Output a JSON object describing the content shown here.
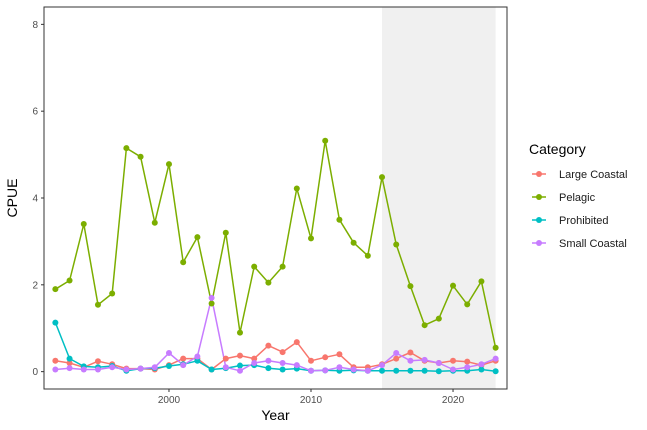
{
  "chart_data": {
    "type": "line",
    "xlabel": "Year",
    "ylabel": "CPUE",
    "xlim": [
      1991.2,
      2023.8
    ],
    "ylim": [
      -0.4,
      8.4
    ],
    "x_ticks": [
      2000,
      2010,
      2020
    ],
    "y_ticks": [
      0,
      2,
      4,
      6,
      8
    ],
    "shaded_region": [
      2015,
      2023
    ],
    "grid": false,
    "legend": {
      "title": "Category",
      "position": "right"
    },
    "x": [
      1992,
      1993,
      1994,
      1995,
      1996,
      1997,
      1998,
      1999,
      2000,
      2001,
      2002,
      2003,
      2004,
      2005,
      2006,
      2007,
      2008,
      2009,
      2010,
      2011,
      2012,
      2013,
      2014,
      2015,
      2016,
      2017,
      2018,
      2019,
      2020,
      2021,
      2022,
      2023
    ],
    "series": [
      {
        "name": "Large Coastal",
        "color": "#F8766D",
        "values": [
          0.25,
          0.2,
          0.1,
          0.24,
          0.17,
          0.07,
          0.07,
          0.05,
          0.15,
          0.3,
          0.3,
          0.05,
          0.3,
          0.37,
          0.3,
          0.6,
          0.45,
          0.68,
          0.25,
          0.33,
          0.4,
          0.1,
          0.1,
          0.17,
          0.3,
          0.44,
          0.25,
          0.2,
          0.25,
          0.23,
          0.15,
          0.25
        ]
      },
      {
        "name": "Pelagic",
        "color": "#7CAE00",
        "values": [
          1.9,
          2.1,
          3.4,
          1.54,
          1.8,
          5.15,
          4.95,
          3.43,
          4.78,
          2.52,
          3.1,
          1.57,
          3.2,
          0.9,
          2.42,
          2.05,
          2.42,
          4.22,
          3.07,
          5.32,
          3.5,
          2.97,
          2.67,
          4.48,
          2.93,
          1.97,
          1.07,
          1.22,
          1.98,
          1.55,
          2.08,
          0.55
        ]
      },
      {
        "name": "Prohibited",
        "color": "#00BFC4",
        "values": [
          1.13,
          0.3,
          0.12,
          0.1,
          0.13,
          0.02,
          0.07,
          0.08,
          0.13,
          0.17,
          0.25,
          0.05,
          0.08,
          0.14,
          0.15,
          0.08,
          0.05,
          0.07,
          0.02,
          0.03,
          0.02,
          0.03,
          0.02,
          0.02,
          0.02,
          0.02,
          0.02,
          0.01,
          0.02,
          0.02,
          0.05,
          0.01
        ]
      },
      {
        "name": "Small Coastal",
        "color": "#C77CFF",
        "values": [
          0.05,
          0.08,
          0.05,
          0.05,
          0.1,
          0.05,
          0.07,
          0.1,
          0.43,
          0.15,
          0.35,
          1.7,
          0.1,
          0.02,
          0.2,
          0.25,
          0.2,
          0.15,
          0.02,
          0.03,
          0.1,
          0.05,
          0.02,
          0.15,
          0.43,
          0.25,
          0.27,
          0.2,
          0.05,
          0.1,
          0.17,
          0.3
        ]
      }
    ]
  }
}
